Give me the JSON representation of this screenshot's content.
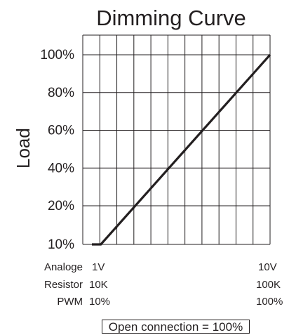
{
  "chart_data": {
    "type": "line",
    "title": "Dimming Curve",
    "ylabel": "Load",
    "y_ticks": [
      "10%",
      "20%",
      "40%",
      "60%",
      "80%",
      "100%"
    ],
    "ylim": [
      10,
      100
    ],
    "xlim": [
      0,
      100
    ],
    "grid": true,
    "series": [
      {
        "points": [
          {
            "x": 0,
            "y": 10
          },
          {
            "x": 5,
            "y": 10
          },
          {
            "x": 100,
            "y": 100
          }
        ]
      }
    ],
    "x_axis_rows": [
      {
        "name": "Analoge",
        "min": "1V",
        "max": "10V"
      },
      {
        "name": "Resistor",
        "min": "10K",
        "max": "100K"
      },
      {
        "name": "PWM",
        "min": "10%",
        "max": "100%"
      }
    ],
    "note": "Open connection = 100%"
  }
}
